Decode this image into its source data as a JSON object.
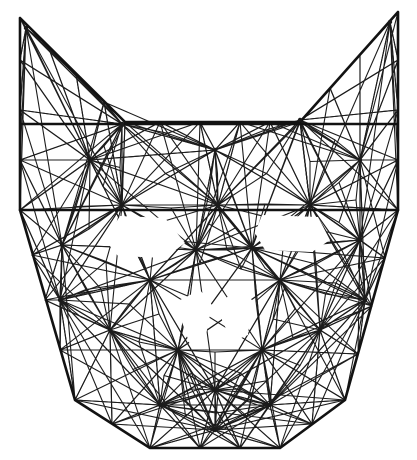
{
  "drawing": {
    "subject": "wolf-head-line-drawing",
    "ink_color": "#1c1c1c",
    "paper_color": "#ffffff"
  }
}
